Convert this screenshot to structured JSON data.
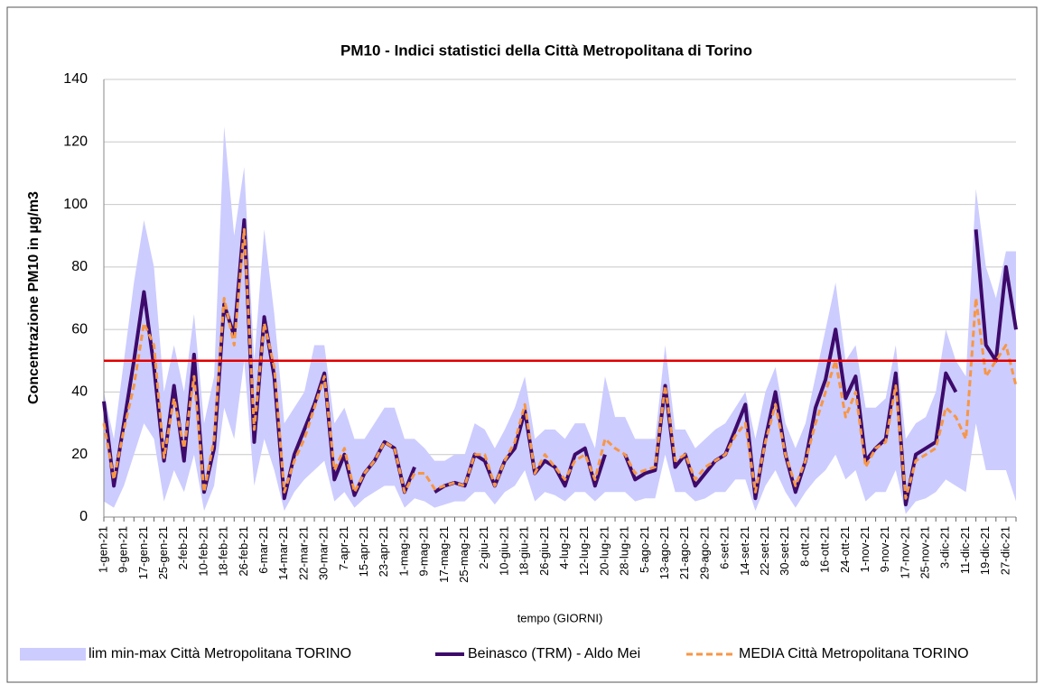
{
  "chart_data": {
    "type": "line",
    "title": "PM10 - Indici statistici della Città Metropolitana di Torino",
    "y_label": "Concentrazione PM10 in µg/m3",
    "x_label": "tempo (GIORNI)",
    "categories": [
      "1-gen-21",
      null,
      "9-gen-21",
      null,
      "17-gen-21",
      null,
      "25-gen-21",
      null,
      "2-feb-21",
      null,
      "10-feb-21",
      null,
      "18-feb-21",
      null,
      "26-feb-21",
      null,
      "6-mar-21",
      null,
      "14-mar-21",
      null,
      "22-mar-21",
      null,
      "30-mar-21",
      null,
      "7-apr-21",
      null,
      "15-apr-21",
      null,
      "23-apr-21",
      null,
      "1-mag-21",
      null,
      "9-mag-21",
      null,
      "17-mag-21",
      null,
      "25-mag-21",
      null,
      "2-giu-21",
      null,
      "10-giu-21",
      null,
      "18-giu-21",
      null,
      "26-giu-21",
      null,
      "4-lug-21",
      null,
      "12-lug-21",
      null,
      "20-lug-21",
      null,
      "28-lug-21",
      null,
      "5-ago-21",
      null,
      "13-ago-21",
      null,
      "21-ago-21",
      null,
      "29-ago-21",
      null,
      "6-set-21",
      null,
      "14-set-21",
      null,
      "22-set-21",
      null,
      "30-set-21",
      null,
      "8-ott-21",
      null,
      "16-ott-21",
      null,
      "24-ott-21",
      null,
      "1-nov-21",
      null,
      "9-nov-21",
      null,
      "17-nov-21",
      null,
      "25-nov-21",
      null,
      "3-dic-21",
      null,
      "11-dic-21",
      null,
      "19-dic-21",
      null,
      "27-dic-21",
      null
    ],
    "band": {
      "name": "lim min-max Città Metropolitana TORINO",
      "color": "#ccccff",
      "low": [
        5,
        3,
        10,
        20,
        30,
        25,
        5,
        15,
        8,
        20,
        2,
        10,
        35,
        25,
        50,
        10,
        25,
        15,
        2,
        8,
        12,
        15,
        18,
        5,
        8,
        3,
        6,
        8,
        10,
        10,
        3,
        6,
        5,
        3,
        4,
        5,
        5,
        8,
        8,
        4,
        8,
        10,
        15,
        5,
        8,
        7,
        5,
        8,
        8,
        5,
        8,
        8,
        8,
        5,
        6,
        6,
        20,
        8,
        8,
        5,
        6,
        8,
        8,
        12,
        12,
        2,
        10,
        15,
        8,
        3,
        8,
        12,
        15,
        20,
        12,
        15,
        5,
        8,
        8,
        15,
        1,
        5,
        6,
        8,
        12,
        10,
        8,
        30,
        15,
        15,
        15,
        5
      ],
      "high": [
        40,
        25,
        50,
        75,
        95,
        80,
        40,
        55,
        40,
        65,
        30,
        45,
        125,
        90,
        112,
        50,
        92,
        65,
        30,
        35,
        40,
        55,
        55,
        30,
        35,
        25,
        25,
        30,
        35,
        35,
        25,
        25,
        22,
        18,
        18,
        20,
        20,
        30,
        28,
        22,
        28,
        35,
        45,
        25,
        28,
        28,
        25,
        30,
        30,
        22,
        45,
        32,
        32,
        25,
        25,
        25,
        55,
        28,
        28,
        22,
        25,
        28,
        30,
        35,
        40,
        25,
        40,
        48,
        30,
        22,
        30,
        45,
        60,
        75,
        50,
        55,
        35,
        35,
        38,
        55,
        25,
        30,
        32,
        40,
        60,
        50,
        45,
        105,
        80,
        70,
        85,
        85
      ]
    },
    "series": [
      {
        "name": "Beinasco (TRM) - Aldo Mei",
        "color": "#3d0a6b",
        "values": [
          37,
          10,
          30,
          50,
          72,
          48,
          18,
          42,
          18,
          52,
          8,
          22,
          68,
          58,
          95,
          24,
          64,
          45,
          6,
          20,
          28,
          36,
          46,
          12,
          20,
          7,
          14,
          18,
          24,
          22,
          8,
          16,
          null,
          8,
          10,
          11,
          10,
          20,
          18,
          10,
          18,
          22,
          34,
          14,
          18,
          16,
          10,
          20,
          22,
          10,
          20,
          null,
          20,
          12,
          14,
          15,
          42,
          16,
          20,
          10,
          14,
          18,
          20,
          28,
          36,
          6,
          25,
          40,
          20,
          8,
          18,
          35,
          44,
          60,
          38,
          45,
          18,
          22,
          25,
          46,
          4,
          20,
          22,
          24,
          46,
          40,
          null,
          92,
          55,
          50,
          80,
          60
        ]
      },
      {
        "name": "MEDIA Città Metropolitana TORINO",
        "color": "#f79646",
        "dashed": true,
        "values": [
          30,
          12,
          28,
          42,
          62,
          55,
          19,
          38,
          22,
          45,
          8,
          25,
          70,
          55,
          92,
          28,
          62,
          48,
          8,
          18,
          25,
          35,
          45,
          15,
          22,
          8,
          14,
          18,
          24,
          22,
          8,
          14,
          14,
          9,
          10,
          11,
          10,
          20,
          20,
          10,
          18,
          24,
          36,
          14,
          20,
          16,
          12,
          18,
          20,
          12,
          25,
          22,
          20,
          14,
          15,
          16,
          42,
          18,
          20,
          12,
          16,
          18,
          20,
          26,
          30,
          8,
          24,
          36,
          20,
          10,
          18,
          30,
          40,
          50,
          32,
          40,
          16,
          22,
          24,
          42,
          6,
          18,
          20,
          22,
          35,
          32,
          25,
          70,
          45,
          50,
          55,
          42
        ]
      }
    ],
    "threshold": {
      "value": 50,
      "color": "#e00000"
    },
    "ylim": [
      0,
      140
    ],
    "yticks": [
      0,
      20,
      40,
      60,
      80,
      100,
      120,
      140
    ],
    "grid": true
  }
}
